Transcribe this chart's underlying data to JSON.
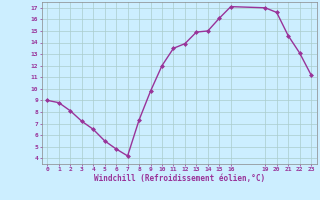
{
  "x": [
    0,
    1,
    2,
    3,
    4,
    5,
    6,
    7,
    8,
    9,
    10,
    11,
    12,
    13,
    14,
    15,
    16,
    19,
    20,
    21,
    22,
    23
  ],
  "y": [
    9.0,
    8.8,
    8.1,
    7.2,
    6.5,
    5.5,
    4.8,
    4.2,
    7.3,
    9.8,
    12.0,
    13.5,
    13.9,
    14.9,
    15.0,
    16.1,
    17.1,
    17.0,
    16.6,
    14.6,
    13.1,
    11.2
  ],
  "xlim": [
    -0.5,
    23.5
  ],
  "ylim": [
    3.5,
    17.5
  ],
  "yticks": [
    4,
    5,
    6,
    7,
    8,
    9,
    10,
    11,
    12,
    13,
    14,
    15,
    16,
    17
  ],
  "xticks": [
    0,
    1,
    2,
    3,
    4,
    5,
    6,
    7,
    8,
    9,
    10,
    11,
    12,
    13,
    14,
    15,
    16,
    19,
    20,
    21,
    22,
    23
  ],
  "xlabel": "Windchill (Refroidissement éolien,°C)",
  "line_color": "#993399",
  "marker": "D",
  "marker_size": 2.0,
  "bg_color": "#cceeff",
  "grid_color": "#aacccc",
  "spine_color": "#888888",
  "tick_color": "#993399",
  "label_color": "#993399",
  "line_width": 1.0,
  "font_size_tick": 4.5,
  "font_size_label": 5.5
}
